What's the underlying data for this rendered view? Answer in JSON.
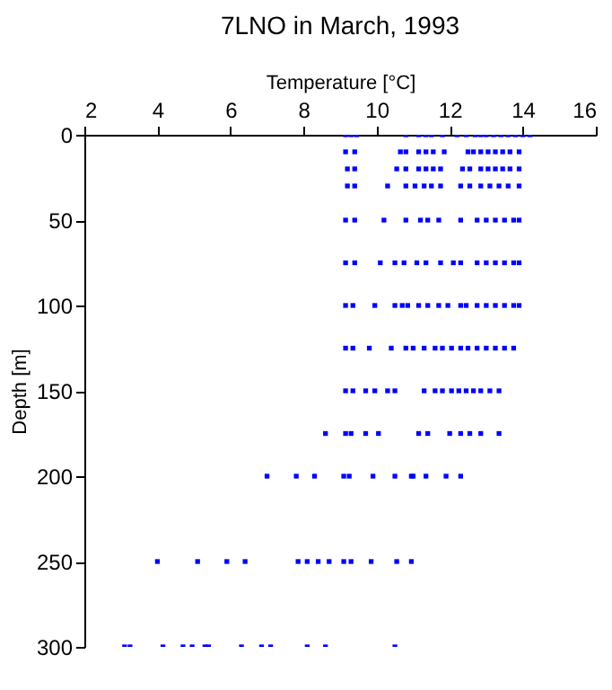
{
  "chart_data": {
    "type": "scatter",
    "title": "7LNO in March, 1993",
    "xlabel": "Temperature [°C]",
    "ylabel": "Depth [m]",
    "xlim": [
      2,
      16
    ],
    "xticks": [
      2,
      4,
      6,
      8,
      10,
      12,
      14,
      16
    ],
    "ylim": [
      300,
      0
    ],
    "yticks": [
      0,
      50,
      100,
      150,
      200,
      250,
      300
    ],
    "grid": false,
    "marker": "square",
    "series": [
      {
        "color": "#0000ff",
        "x": [
          9.15,
          9.3,
          9.45,
          10.8,
          11.15,
          11.35,
          11.5,
          11.8,
          12.2,
          12.45,
          12.7,
          12.85,
          13.0,
          13.2,
          13.4,
          13.6,
          13.8,
          14.0,
          14.2,
          9.15,
          9.4,
          10.65,
          10.8,
          11.15,
          11.35,
          11.55,
          11.85,
          12.5,
          12.65,
          12.85,
          13.05,
          13.25,
          13.45,
          13.65,
          13.9,
          9.2,
          9.4,
          10.55,
          10.8,
          11.15,
          11.35,
          11.55,
          11.75,
          12.35,
          12.55,
          12.85,
          13.05,
          13.25,
          13.45,
          13.65,
          13.9,
          9.2,
          9.4,
          10.3,
          10.8,
          11.05,
          11.3,
          11.5,
          11.75,
          12.3,
          12.55,
          12.85,
          13.1,
          13.35,
          13.6,
          13.9,
          9.15,
          9.4,
          10.2,
          10.8,
          11.2,
          11.4,
          11.7,
          12.3,
          12.75,
          13.0,
          13.25,
          13.5,
          13.75,
          13.9,
          9.15,
          9.4,
          10.1,
          10.5,
          10.75,
          11.1,
          11.35,
          11.75,
          12.1,
          12.3,
          12.75,
          13.0,
          13.25,
          13.5,
          13.75,
          13.9,
          9.15,
          9.35,
          9.95,
          10.5,
          10.7,
          10.85,
          11.15,
          11.4,
          11.7,
          11.95,
          12.3,
          12.45,
          12.75,
          13.0,
          13.25,
          13.5,
          13.75,
          13.9,
          9.15,
          9.35,
          9.8,
          10.4,
          10.8,
          11.0,
          11.3,
          11.6,
          11.8,
          12.05,
          12.3,
          12.5,
          12.75,
          13.0,
          13.25,
          13.5,
          13.75,
          9.15,
          9.35,
          9.7,
          9.95,
          10.3,
          10.5,
          11.3,
          11.6,
          11.8,
          12.05,
          12.25,
          12.45,
          12.65,
          12.85,
          13.1,
          13.35,
          8.6,
          9.15,
          9.3,
          9.7,
          10.05,
          11.15,
          11.4,
          12.0,
          12.3,
          12.55,
          12.85,
          13.35,
          7.0,
          7.8,
          8.3,
          9.1,
          9.25,
          9.9,
          10.5,
          10.95,
          11.0,
          11.35,
          11.9,
          12.3,
          4.0,
          5.1,
          5.9,
          6.4,
          7.85,
          8.1,
          8.4,
          8.7,
          9.1,
          9.3,
          9.85,
          10.55,
          10.95,
          3.1,
          3.25,
          4.15,
          4.7,
          4.95,
          5.3,
          5.4,
          6.3,
          6.85,
          7.1,
          8.1,
          8.6,
          10.5
        ],
        "values": [
          0,
          0,
          0,
          0,
          0,
          0,
          0,
          0,
          0,
          0,
          0,
          0,
          0,
          0,
          0,
          0,
          0,
          0,
          0,
          10,
          10,
          10,
          10,
          10,
          10,
          10,
          10,
          10,
          10,
          10,
          10,
          10,
          10,
          10,
          10,
          20,
          20,
          20,
          20,
          20,
          20,
          20,
          20,
          20,
          20,
          20,
          20,
          20,
          20,
          20,
          20,
          30,
          30,
          30,
          30,
          30,
          30,
          30,
          30,
          30,
          30,
          30,
          30,
          30,
          30,
          30,
          50,
          50,
          50,
          50,
          50,
          50,
          50,
          50,
          50,
          50,
          50,
          50,
          50,
          50,
          75,
          75,
          75,
          75,
          75,
          75,
          75,
          75,
          75,
          75,
          75,
          75,
          75,
          75,
          75,
          75,
          100,
          100,
          100,
          100,
          100,
          100,
          100,
          100,
          100,
          100,
          100,
          100,
          100,
          100,
          100,
          100,
          100,
          100,
          125,
          125,
          125,
          125,
          125,
          125,
          125,
          125,
          125,
          125,
          125,
          125,
          125,
          125,
          125,
          125,
          125,
          150,
          150,
          150,
          150,
          150,
          150,
          150,
          150,
          150,
          150,
          150,
          150,
          150,
          150,
          150,
          150,
          175,
          175,
          175,
          175,
          175,
          175,
          175,
          175,
          175,
          175,
          175,
          175,
          200,
          200,
          200,
          200,
          200,
          200,
          200,
          200,
          200,
          200,
          200,
          200,
          250,
          250,
          250,
          250,
          250,
          250,
          250,
          250,
          250,
          250,
          250,
          250,
          250,
          300,
          300,
          300,
          300,
          300,
          300,
          300,
          300,
          300,
          300,
          300,
          300,
          300
        ]
      }
    ]
  }
}
